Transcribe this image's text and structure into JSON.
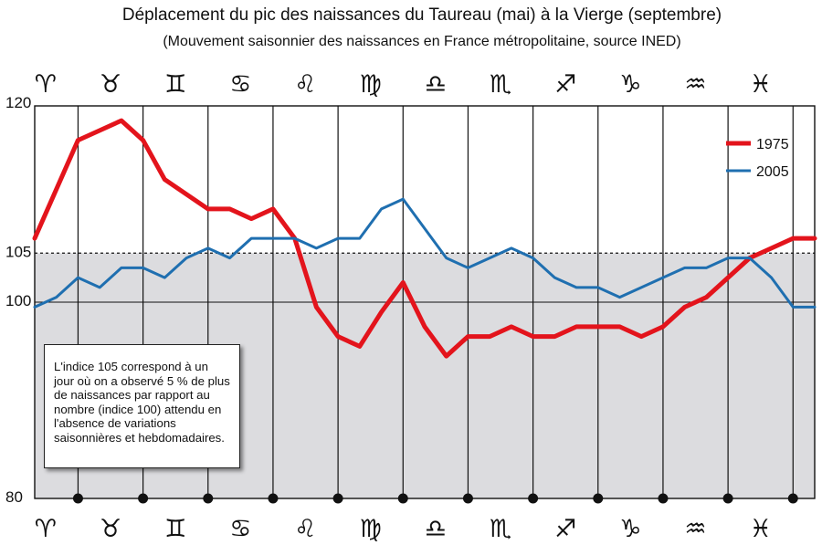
{
  "chart_data": {
    "type": "line",
    "title": "Déplacement du pic des naissances du Taureau (mai) à la Vierge (septembre)",
    "subtitle": "(Mouvement saisonnier des naissances en France métropolitaine, source INED)",
    "xlabel": "",
    "ylabel": "",
    "ylim": [
      80,
      120
    ],
    "yticks": [
      80,
      100,
      105,
      120
    ],
    "reference_line": 105,
    "zodiac_signs": [
      "♈",
      "♉",
      "♊",
      "♋",
      "♌",
      "♍",
      "♎",
      "♏",
      "♐",
      "♑",
      "♒",
      "♓"
    ],
    "zodiac_names": [
      "aries-icon",
      "taurus-icon",
      "gemini-icon",
      "cancer-icon",
      "leo-icon",
      "virgo-icon",
      "libra-icon",
      "scorpio-icon",
      "sagittarius-icon",
      "capricorn-icon",
      "aquarius-icon",
      "pisces-icon"
    ],
    "x": [
      0,
      1,
      2,
      3,
      4,
      5,
      6,
      7,
      8,
      9,
      10,
      11,
      12,
      13,
      14,
      15,
      16,
      17,
      18,
      19,
      20,
      21,
      22,
      23,
      24,
      25,
      26,
      27,
      28,
      29,
      30,
      31,
      32,
      33,
      34,
      35,
      36
    ],
    "series": [
      {
        "name": "1975",
        "color": "#e3141c",
        "values": [
          106.5,
          111.5,
          116.5,
          117.5,
          118.5,
          116.5,
          112.5,
          111.0,
          109.5,
          109.5,
          108.5,
          109.5,
          106.5,
          99.5,
          96.5,
          95.5,
          99.0,
          102.0,
          97.5,
          94.5,
          96.5,
          96.5,
          97.5,
          96.5,
          96.5,
          97.5,
          97.5,
          97.5,
          96.5,
          97.5,
          99.5,
          100.5,
          102.5,
          104.5,
          105.5,
          106.5,
          106.5
        ]
      },
      {
        "name": "2005",
        "color": "#1f6fb0",
        "values": [
          99.5,
          100.5,
          102.5,
          101.5,
          103.5,
          103.5,
          102.5,
          104.5,
          105.5,
          104.5,
          106.5,
          106.5,
          106.5,
          105.5,
          106.5,
          106.5,
          109.5,
          110.5,
          107.5,
          104.5,
          103.5,
          104.5,
          105.5,
          104.5,
          102.5,
          101.5,
          101.5,
          100.5,
          101.5,
          102.5,
          103.5,
          103.5,
          104.5,
          104.5,
          102.5,
          99.5,
          99.5
        ]
      }
    ],
    "legend": [
      "1975",
      "2005"
    ],
    "legend_position": "top-right",
    "grid": "vertical lines at zodiac sign boundaries",
    "note": "L'indice 105 correspond à un jour où on a observé 5 % de plus de naissances par rapport au nombre (indice 100) attendu en l'absence de variations saisonnières et hebdomadaires."
  },
  "colors": {
    "shaded_area": "#dcdcdf",
    "axis": "#111111"
  }
}
